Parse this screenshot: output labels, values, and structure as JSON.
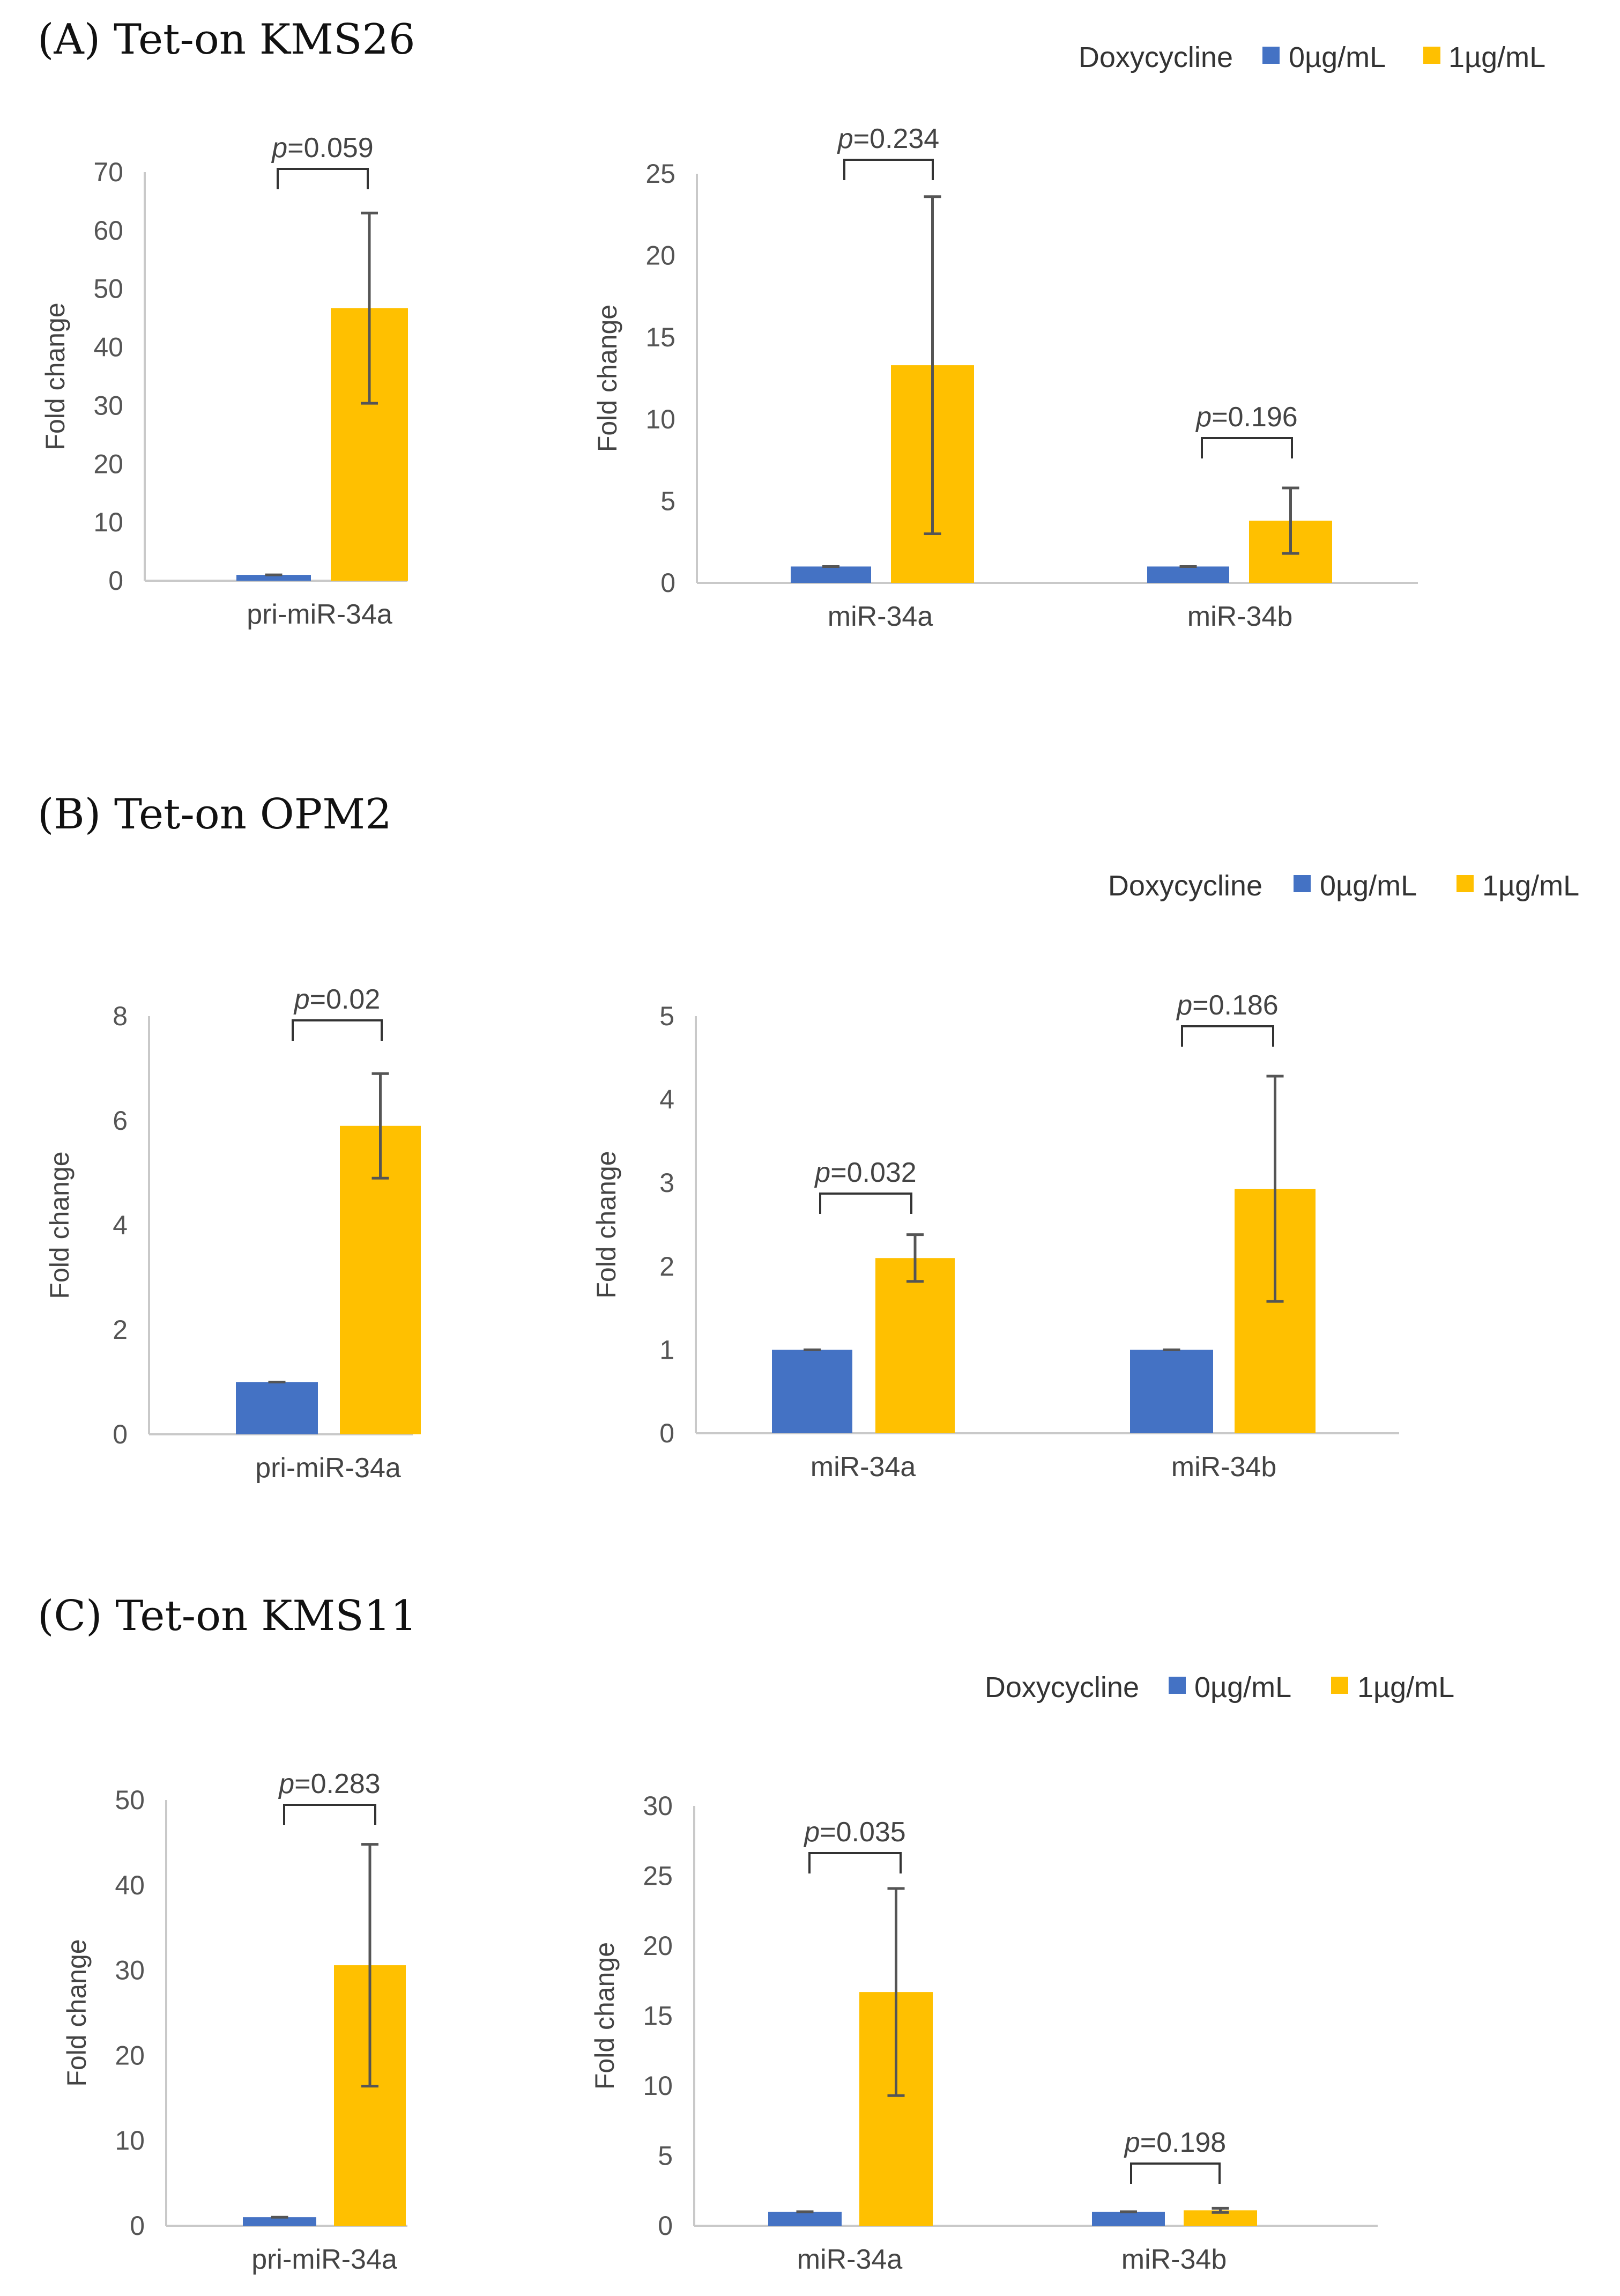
{
  "colors": {
    "blue": "#4472C4",
    "gold": "#FFC000"
  },
  "legend": {
    "title": "Doxycycline",
    "items": [
      "0µg/mL",
      "1µg/mL"
    ]
  },
  "panels": [
    {
      "title": "(A) Tet-on KMS26"
    },
    {
      "title": "(B) Tet-on OPM2"
    },
    {
      "title": "(C) Tet-on KMS11"
    }
  ],
  "chart_data": [
    {
      "type": "bar",
      "panel": "A",
      "title": "pri-miR-34a",
      "ylabel": "Fold change",
      "ylim": [
        0,
        70
      ],
      "yticks": [
        0,
        10,
        20,
        30,
        40,
        50,
        60,
        70
      ],
      "categories": [
        "pri-miR-34a"
      ],
      "series": [
        {
          "name": "0µg/mL",
          "values": [
            1.0
          ],
          "errors": [
            0
          ]
        },
        {
          "name": "1µg/mL",
          "values": [
            46.7
          ],
          "errors": [
            16.3
          ]
        }
      ],
      "annotations": [
        "p=0.059"
      ]
    },
    {
      "type": "bar",
      "panel": "A",
      "title": "miR-34a / miR-34b",
      "ylabel": "Fold change",
      "ylim": [
        0,
        25
      ],
      "yticks": [
        0,
        5,
        10,
        15,
        20,
        25
      ],
      "categories": [
        "miR-34a",
        "miR-34b"
      ],
      "series": [
        {
          "name": "0µg/mL",
          "values": [
            1.0,
            1.0
          ],
          "errors": [
            0,
            0
          ]
        },
        {
          "name": "1µg/mL",
          "values": [
            13.3,
            3.8
          ],
          "errors": [
            10.3,
            2.0
          ]
        }
      ],
      "annotations": [
        "p=0.234",
        "p=0.196"
      ]
    },
    {
      "type": "bar",
      "panel": "B",
      "title": "pri-miR-34a",
      "ylabel": "Fold change",
      "ylim": [
        0,
        8
      ],
      "yticks": [
        0,
        2,
        4,
        6,
        8
      ],
      "categories": [
        "pri-miR-34a"
      ],
      "series": [
        {
          "name": "0µg/mL",
          "values": [
            1.0
          ],
          "errors": [
            0
          ]
        },
        {
          "name": "1µg/mL",
          "values": [
            5.9
          ],
          "errors": [
            1.0
          ]
        }
      ],
      "annotations": [
        "p=0.02"
      ]
    },
    {
      "type": "bar",
      "panel": "B",
      "title": "miR-34a / miR-34b",
      "ylabel": "Fold change",
      "ylim": [
        0,
        5
      ],
      "yticks": [
        0,
        1,
        2,
        3,
        4,
        5
      ],
      "categories": [
        "miR-34a",
        "miR-34b"
      ],
      "series": [
        {
          "name": "0µg/mL",
          "values": [
            1.0,
            1.0
          ],
          "errors": [
            0,
            0
          ]
        },
        {
          "name": "1µg/mL",
          "values": [
            2.1,
            2.93
          ],
          "errors": [
            0.28,
            1.35
          ]
        }
      ],
      "annotations": [
        "p=0.032",
        "p=0.186"
      ]
    },
    {
      "type": "bar",
      "panel": "C",
      "title": "pri-miR-34a",
      "ylabel": "Fold change",
      "ylim": [
        0,
        50
      ],
      "yticks": [
        0,
        10,
        20,
        30,
        40,
        50
      ],
      "categories": [
        "pri-miR-34a"
      ],
      "series": [
        {
          "name": "0µg/mL",
          "values": [
            1.0
          ],
          "errors": [
            0
          ]
        },
        {
          "name": "1µg/mL",
          "values": [
            30.6
          ],
          "errors": [
            14.2
          ]
        }
      ],
      "annotations": [
        "p=0.283"
      ]
    },
    {
      "type": "bar",
      "panel": "C",
      "title": "miR-34a / miR-34b",
      "ylabel": "Fold change",
      "ylim": [
        0,
        30
      ],
      "yticks": [
        0,
        5,
        10,
        15,
        20,
        25,
        30
      ],
      "categories": [
        "miR-34a",
        "miR-34b"
      ],
      "series": [
        {
          "name": "0µg/mL",
          "values": [
            1.0,
            1.0
          ],
          "errors": [
            0,
            0
          ]
        },
        {
          "name": "1µg/mL",
          "values": [
            16.7,
            1.1
          ],
          "errors": [
            7.4,
            0.15
          ]
        }
      ],
      "annotations": [
        "p=0.035",
        "p=0.198"
      ]
    }
  ]
}
